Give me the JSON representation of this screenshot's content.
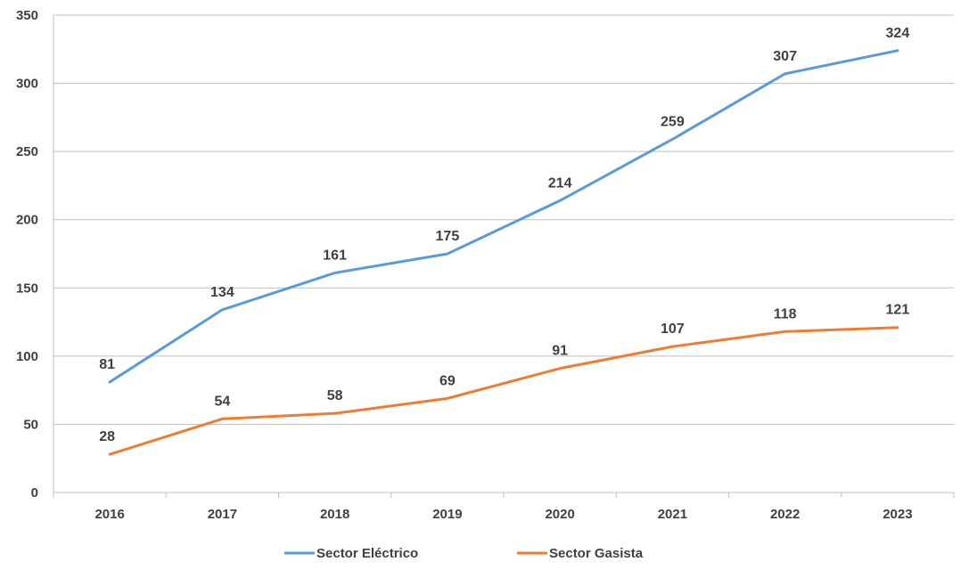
{
  "chart_data": {
    "type": "line",
    "title": "",
    "xlabel": "",
    "ylabel": "",
    "categories": [
      "2016",
      "2017",
      "2018",
      "2019",
      "2020",
      "2021",
      "2022",
      "2023"
    ],
    "series": [
      {
        "name": "Sector Eléctrico",
        "color": "#5B9BD5",
        "values": [
          81,
          134,
          161,
          175,
          214,
          259,
          307,
          324
        ]
      },
      {
        "name": "Sector Gasista",
        "color": "#ED7D31",
        "values": [
          28,
          54,
          58,
          69,
          91,
          107,
          118,
          121
        ]
      }
    ],
    "ylim": [
      0,
      350
    ],
    "yticks": [
      0,
      50,
      100,
      150,
      200,
      250,
      300,
      350
    ],
    "grid": true,
    "data_labels": true,
    "legend_position": "bottom-center"
  }
}
